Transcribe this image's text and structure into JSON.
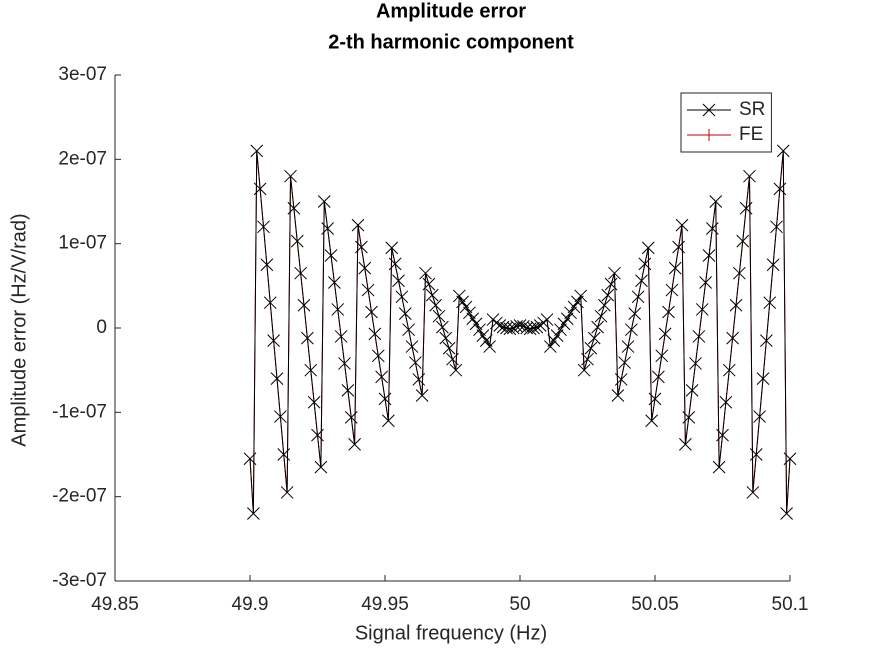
{
  "chart_data": {
    "type": "line",
    "title": "Amplitude error",
    "subtitle": "2-th harmonic component",
    "xlabel": "Signal frequency (Hz)",
    "ylabel": "Amplitude error (Hz/V/rad)",
    "xlim": [
      49.85,
      50.1
    ],
    "ylim": [
      -3e-07,
      3e-07
    ],
    "xticks": [
      49.85,
      49.9,
      49.95,
      50,
      50.05,
      50.1
    ],
    "yticks": [
      {
        "value": -3e-07,
        "label": "-3e-07"
      },
      {
        "value": -2e-07,
        "label": "-2e-07"
      },
      {
        "value": -1e-07,
        "label": "-1e-07"
      },
      0,
      {
        "value": 1e-07,
        "label": "1e-07"
      },
      {
        "value": 2e-07,
        "label": "2e-07"
      },
      {
        "value": 3e-07,
        "label": "3e-07"
      }
    ],
    "grid": false,
    "legend": "upper right",
    "x": [
      49.9,
      49.90125,
      49.9025,
      49.90375,
      49.905,
      49.90625,
      49.9075,
      49.90875,
      49.91,
      49.91125,
      49.9125,
      49.91375,
      49.915,
      49.91625,
      49.9175,
      49.91875,
      49.92,
      49.92125,
      49.9225,
      49.92375,
      49.925,
      49.92625,
      49.9275,
      49.92875,
      49.93,
      49.93125,
      49.9325,
      49.93375,
      49.935,
      49.93625,
      49.9375,
      49.93875,
      49.94,
      49.94125,
      49.9425,
      49.94375,
      49.945,
      49.94625,
      49.9475,
      49.94875,
      49.95,
      49.95125,
      49.9525,
      49.95375,
      49.955,
      49.95625,
      49.9575,
      49.95875,
      49.96,
      49.96125,
      49.9625,
      49.96375,
      49.965,
      49.96625,
      49.9675,
      49.96875,
      49.97,
      49.97125,
      49.9725,
      49.97375,
      49.975,
      49.97625,
      49.9775,
      49.97875,
      49.98,
      49.98125,
      49.9825,
      49.98375,
      49.985,
      49.98625,
      49.9875,
      49.98875,
      49.99,
      49.99125,
      49.9925,
      49.99375,
      49.995,
      49.99625,
      49.9975,
      49.99875,
      50,
      50.00125,
      50.0025,
      50.00375,
      50.005,
      50.00625,
      50.0075,
      50.00875,
      50.01,
      50.01125,
      50.0125,
      50.01375,
      50.015,
      50.01625,
      50.0175,
      50.01875,
      50.02,
      50.02125,
      50.0225,
      50.02375,
      50.025,
      50.02625,
      50.0275,
      50.02875,
      50.03,
      50.03125,
      50.0325,
      50.03375,
      50.035,
      50.03625,
      50.0375,
      50.03875,
      50.04,
      50.04125,
      50.0425,
      50.04375,
      50.045,
      50.04625,
      50.0475,
      50.04875,
      50.05,
      50.05125,
      50.0525,
      50.05375,
      50.055,
      50.05625,
      50.0575,
      50.05875,
      50.06,
      50.06125,
      50.0625,
      50.06375,
      50.065,
      50.06625,
      50.0675,
      50.06875,
      50.07,
      50.07125,
      50.0725,
      50.07375,
      50.075,
      50.07625,
      50.0775,
      50.07875,
      50.08,
      50.08125,
      50.0825,
      50.08375,
      50.085,
      50.08625,
      50.0875,
      50.08875,
      50.09,
      50.09125,
      50.0925,
      50.09375,
      50.095,
      50.09625,
      50.0975,
      50.09875,
      50.1
    ],
    "series": [
      {
        "name": "SR",
        "color": "#000000",
        "marker": "x",
        "values": [
          -1.55e-07,
          -2.2e-07,
          2.1e-07,
          1.65e-07,
          1.2e-07,
          7.5e-08,
          3e-08,
          -1.5e-08,
          -6e-08,
          -1.05e-07,
          -1.5e-07,
          -1.95e-07,
          1.8e-07,
          1.42e-07,
          1.03e-07,
          6.5e-08,
          2.7e-08,
          -1.2e-08,
          -5e-08,
          -8.8e-08,
          -1.27e-07,
          -1.65e-07,
          1.5e-07,
          1.18e-07,
          8.6e-08,
          5.4e-08,
          2.2e-08,
          -1e-08,
          -4.2e-08,
          -7.4e-08,
          -1.06e-07,
          -1.38e-07,
          1.22e-07,
          9.6e-08,
          7.1e-08,
          4.5e-08,
          1.9e-08,
          -7e-09,
          -3.3e-08,
          -5.8e-08,
          -8.4e-08,
          -1.1e-07,
          9.5e-08,
          7.6e-08,
          5.6e-08,
          3.7e-08,
          1.7e-08,
          -2e-09,
          -2.2e-08,
          -4.1e-08,
          -6.1e-08,
          -8e-08,
          6.5e-08,
          5.2e-08,
          3.9e-08,
          2.7e-08,
          1.4e-08,
          1e-09,
          -1.2e-08,
          -2.4e-08,
          -3.7e-08,
          -5e-08,
          3.8e-08,
          3.1e-08,
          2.5e-08,
          1.8e-08,
          1.1e-08,
          5e-09,
          -2e-09,
          -9e-09,
          -1.5e-08,
          -2.2e-08,
          1e-08,
          6e-09,
          3e-09,
          1e-09,
          0,
          -1e-09,
          0,
          2e-09,
          3e-09,
          2e-09,
          0,
          -1e-09,
          0,
          1e-09,
          3e-09,
          6e-09,
          1e-08,
          -2.2e-08,
          -1.5e-08,
          -9e-09,
          -2e-09,
          5e-09,
          1.1e-08,
          1.8e-08,
          2.5e-08,
          3.1e-08,
          3.8e-08,
          -5e-08,
          -3.7e-08,
          -2.4e-08,
          -1.2e-08,
          1e-09,
          1.4e-08,
          2.7e-08,
          3.9e-08,
          5.2e-08,
          6.5e-08,
          -8e-08,
          -6.1e-08,
          -4.1e-08,
          -2.2e-08,
          -2e-09,
          1.7e-08,
          3.7e-08,
          5.6e-08,
          7.6e-08,
          9.5e-08,
          -1.1e-07,
          -8.4e-08,
          -5.8e-08,
          -3.3e-08,
          -7e-09,
          1.9e-08,
          4.5e-08,
          7.1e-08,
          9.6e-08,
          1.22e-07,
          -1.38e-07,
          -1.06e-07,
          -7.4e-08,
          -4.2e-08,
          -1e-08,
          2.2e-08,
          5.4e-08,
          8.6e-08,
          1.18e-07,
          1.5e-07,
          -1.65e-07,
          -1.27e-07,
          -8.8e-08,
          -5e-08,
          -1.2e-08,
          2.7e-08,
          6.5e-08,
          1.03e-07,
          1.42e-07,
          1.8e-07,
          -1.95e-07,
          -1.5e-07,
          -1.05e-07,
          -6e-08,
          -1.5e-08,
          3e-08,
          7.5e-08,
          1.2e-07,
          1.65e-07,
          2.1e-07,
          -2.2e-07,
          -1.55e-07
        ]
      },
      {
        "name": "FE",
        "color": "#c00000",
        "marker": "+",
        "values": [
          -1.55e-07,
          -2.2e-07,
          2.1e-07,
          1.65e-07,
          1.2e-07,
          7.5e-08,
          3e-08,
          -1.5e-08,
          -6e-08,
          -1.05e-07,
          -1.5e-07,
          -1.95e-07,
          1.8e-07,
          1.42e-07,
          1.03e-07,
          6.5e-08,
          2.7e-08,
          -1.2e-08,
          -5e-08,
          -8.8e-08,
          -1.27e-07,
          -1.65e-07,
          1.5e-07,
          1.18e-07,
          8.6e-08,
          5.4e-08,
          2.2e-08,
          -1e-08,
          -4.2e-08,
          -7.4e-08,
          -1.06e-07,
          -1.38e-07,
          1.22e-07,
          9.6e-08,
          7.1e-08,
          4.5e-08,
          1.9e-08,
          -7e-09,
          -3.3e-08,
          -5.8e-08,
          -8.4e-08,
          -1.1e-07,
          9.5e-08,
          7.6e-08,
          5.6e-08,
          3.7e-08,
          1.7e-08,
          -2e-09,
          -2.2e-08,
          -4.1e-08,
          -6.1e-08,
          -8e-08,
          6.5e-08,
          5.2e-08,
          3.9e-08,
          2.7e-08,
          1.4e-08,
          1e-09,
          -1.2e-08,
          -2.4e-08,
          -3.7e-08,
          -5e-08,
          3.8e-08,
          3.1e-08,
          2.5e-08,
          1.8e-08,
          1.1e-08,
          5e-09,
          -2e-09,
          -9e-09,
          -1.5e-08,
          -2.2e-08,
          1e-08,
          6e-09,
          3e-09,
          1e-09,
          0,
          -1e-09,
          0,
          2e-09,
          3e-09,
          2e-09,
          0,
          -1e-09,
          0,
          1e-09,
          3e-09,
          6e-09,
          1e-08,
          -2.2e-08,
          -1.5e-08,
          -9e-09,
          -2e-09,
          5e-09,
          1.1e-08,
          1.8e-08,
          2.5e-08,
          3.1e-08,
          3.8e-08,
          -5e-08,
          -3.7e-08,
          -2.4e-08,
          -1.2e-08,
          1e-09,
          1.4e-08,
          2.7e-08,
          3.9e-08,
          5.2e-08,
          6.5e-08,
          -8e-08,
          -6.1e-08,
          -4.1e-08,
          -2.2e-08,
          -2e-09,
          1.7e-08,
          3.7e-08,
          5.6e-08,
          7.6e-08,
          9.5e-08,
          -1.1e-07,
          -8.4e-08,
          -5.8e-08,
          -3.3e-08,
          -7e-09,
          1.9e-08,
          4.5e-08,
          7.1e-08,
          9.6e-08,
          1.22e-07,
          -1.38e-07,
          -1.06e-07,
          -7.4e-08,
          -4.2e-08,
          -1e-08,
          2.2e-08,
          5.4e-08,
          8.6e-08,
          1.18e-07,
          1.5e-07,
          -1.65e-07,
          -1.27e-07,
          -8.8e-08,
          -5e-08,
          -1.2e-08,
          2.7e-08,
          6.5e-08,
          1.03e-07,
          1.42e-07,
          1.8e-07,
          -1.95e-07,
          -1.5e-07,
          -1.05e-07,
          -6e-08,
          -1.5e-08,
          3e-08,
          7.5e-08,
          1.2e-07,
          1.65e-07,
          2.1e-07,
          -2.2e-07,
          -1.55e-07
        ]
      }
    ]
  }
}
